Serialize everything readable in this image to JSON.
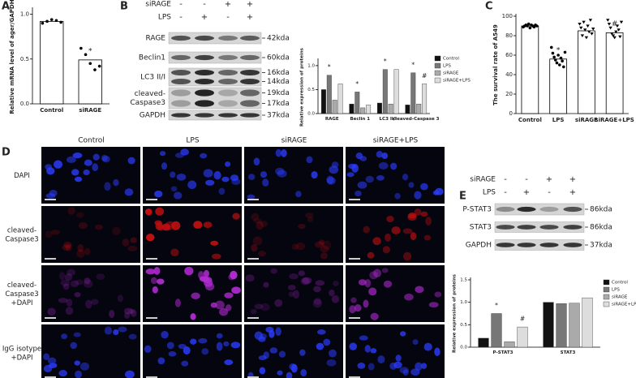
{
  "panel_labels": [
    "A",
    "B",
    "C",
    "D",
    "E"
  ],
  "chart_data": [
    {
      "type": "bar",
      "categories": [
        "Control",
        "siRAGE"
      ],
      "values": [
        0.92,
        0.49
      ],
      "color": "#ffffff",
      "points": [
        [
          0.9,
          0.92,
          0.94,
          0.93,
          0.91
        ],
        [
          0.62,
          0.55,
          0.45,
          0.38,
          0.42
        ]
      ],
      "ylim": [
        0,
        1.05
      ],
      "yticks": [
        {
          "value": 0,
          "label": "0.0"
        },
        {
          "value": 0.5,
          "label": "0.5"
        },
        {
          "value": 1.0,
          "label": "1.0"
        }
      ],
      "ylabel": "Relative mRNA level of ager/GAPDH",
      "annotations": [
        "*"
      ]
    },
    {
      "type": "bar",
      "categories": [
        "RAGE",
        "Beclin 1",
        "LC3 II/I",
        "cleaved-Caspase 3"
      ],
      "series": [
        {
          "name": "Control",
          "color": "#111111",
          "values": [
            0.5,
            0.2,
            0.22,
            0.18
          ]
        },
        {
          "name": "LPS",
          "color": "#777777",
          "values": [
            0.8,
            0.45,
            0.92,
            0.85
          ]
        },
        {
          "name": "siRAGE",
          "color": "#aaaaaa",
          "values": [
            0.28,
            0.12,
            0.2,
            0.2
          ]
        },
        {
          "name": "siRAGE+LPS",
          "color": "#dddddd",
          "values": [
            0.62,
            0.18,
            0.92,
            0.62
          ]
        }
      ],
      "ylim": [
        0,
        1.1
      ],
      "yticks": [
        {
          "value": 0,
          "label": "0.0"
        },
        {
          "value": 0.5,
          "label": "0.5"
        },
        {
          "value": 1.0,
          "label": "1.0"
        }
      ],
      "ylabel": "Relative expression of proteins",
      "annotations": [
        "*",
        "*",
        "*",
        "*",
        "#"
      ]
    },
    {
      "type": "bar",
      "categories": [
        "Control",
        "LPS",
        "siRAGE",
        "siRAGE+LPS"
      ],
      "values": [
        90,
        56,
        85,
        83
      ],
      "color": "#ffffff",
      "points": [
        [
          89,
          90,
          91,
          90,
          92,
          88,
          91,
          90,
          89,
          91,
          90
        ],
        [
          68,
          62,
          58,
          55,
          52,
          60,
          50,
          57,
          54,
          48,
          63
        ],
        [
          92,
          88,
          80,
          94,
          86,
          78,
          90,
          84,
          96,
          82,
          87
        ],
        [
          96,
          92,
          88,
          82,
          80,
          78,
          84,
          90,
          86,
          79,
          94
        ]
      ],
      "ylim": [
        0,
        100
      ],
      "yticks": [
        0,
        20,
        40,
        60,
        80,
        100
      ],
      "ylabel": "The survival rate of A549",
      "annotations": [
        "*",
        "#"
      ]
    },
    {
      "type": "bar",
      "categories": [
        "P-STAT3",
        "STAT3"
      ],
      "series": [
        {
          "name": "Control",
          "color": "#111111",
          "values": [
            0.2,
            1.0
          ]
        },
        {
          "name": "LPS",
          "color": "#777777",
          "values": [
            0.75,
            0.97
          ]
        },
        {
          "name": "siRAGE",
          "color": "#aaaaaa",
          "values": [
            0.12,
            0.98
          ]
        },
        {
          "name": "siRAGE+LPS",
          "color": "#dddddd",
          "values": [
            0.45,
            1.1
          ]
        }
      ],
      "ylim": [
        0,
        1.5
      ],
      "yticks": [
        {
          "value": 0,
          "label": "0.0"
        },
        {
          "value": 0.5,
          "label": "0.5"
        },
        {
          "value": 1.0,
          "label": "1.0"
        },
        {
          "value": 1.5,
          "label": "1.5"
        }
      ],
      "ylabel": "Relative expression of proteins",
      "annotations": [
        "*",
        "#"
      ]
    }
  ],
  "blot_b": {
    "headers": [
      {
        "label": "siRAGE",
        "signs": [
          "-",
          "-",
          "+",
          "+"
        ]
      },
      {
        "label": "LPS",
        "signs": [
          "-",
          "+",
          "-",
          "+"
        ]
      }
    ],
    "rows": [
      {
        "label": [
          "RAGE"
        ],
        "sizes": [
          "42kda"
        ]
      },
      {
        "label": [
          "Beclin1"
        ],
        "sizes": [
          "60kda"
        ]
      },
      {
        "label": [
          "LC3 II/I"
        ],
        "sizes": [
          "16kda",
          "14kda"
        ]
      },
      {
        "label": [
          "cleaved-",
          "Caspase3"
        ],
        "sizes": [
          "19kda",
          "17kda"
        ]
      },
      {
        "label": [
          "GAPDH"
        ],
        "sizes": [
          "37kda"
        ]
      }
    ]
  },
  "micrograph_d": {
    "columns": [
      "Control",
      "LPS",
      "siRAGE",
      "siRAGE+LPS"
    ],
    "rows": [
      [
        "DAPI"
      ],
      [
        "cleaved-",
        "Caspase3"
      ],
      [
        "cleaved-",
        "Caspase3",
        "+DAPI"
      ],
      [
        "IgG isotype",
        "+DAPI"
      ]
    ]
  },
  "blot_e": {
    "headers": [
      {
        "label": "siRAGE",
        "signs": [
          "-",
          "-",
          "+",
          "+"
        ]
      },
      {
        "label": "LPS",
        "signs": [
          "-",
          "+",
          "-",
          "+"
        ]
      }
    ],
    "rows": [
      {
        "label": [
          "P-STAT3"
        ],
        "sizes": [
          "86kda"
        ]
      },
      {
        "label": [
          "STAT3"
        ],
        "sizes": [
          "86kda"
        ]
      },
      {
        "label": [
          "GAPDH"
        ],
        "sizes": [
          "37kda"
        ]
      }
    ]
  }
}
